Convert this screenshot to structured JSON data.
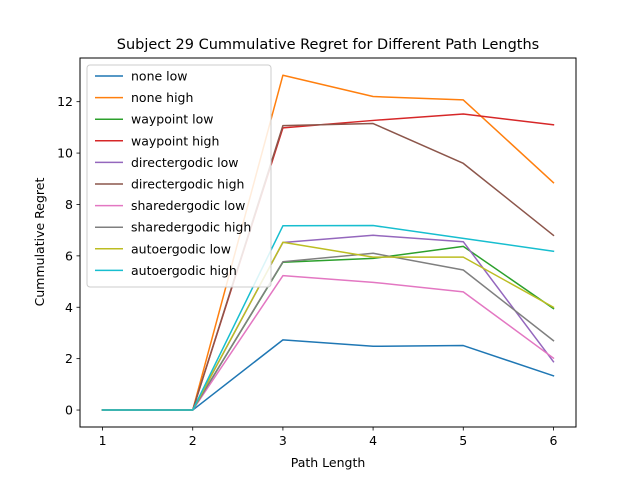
{
  "chart_data": {
    "type": "line",
    "title": "Subject 29 Cummulative Regret for Different Path Lengths",
    "xlabel": "Path Length",
    "ylabel": "Cummulative Regret",
    "x": [
      1,
      2,
      3,
      4,
      5,
      6
    ],
    "xticks": [
      1,
      2,
      3,
      4,
      5,
      6
    ],
    "yticks": [
      0,
      2,
      4,
      6,
      8,
      10,
      12
    ],
    "xlim": [
      0.75,
      6.25
    ],
    "ylim": [
      -0.66,
      13.7
    ],
    "grid": false,
    "legend_position": "top-left",
    "series": [
      {
        "name": "none low",
        "color": "#1f77b4",
        "values": [
          0,
          0,
          2.73,
          2.48,
          2.51,
          1.33
        ]
      },
      {
        "name": "none high",
        "color": "#ff7f0e",
        "values": [
          0,
          0,
          13.03,
          12.2,
          12.07,
          8.85
        ]
      },
      {
        "name": "waypoint low",
        "color": "#2ca02c",
        "values": [
          0,
          0,
          5.75,
          5.9,
          6.37,
          3.95
        ]
      },
      {
        "name": "waypoint high",
        "color": "#d62728",
        "values": [
          0,
          0,
          10.98,
          11.27,
          11.52,
          11.1
        ]
      },
      {
        "name": "directergodic low",
        "color": "#9467bd",
        "values": [
          0,
          0,
          6.52,
          6.8,
          6.55,
          1.88
        ]
      },
      {
        "name": "directergodic high",
        "color": "#8c564b",
        "values": [
          0,
          0,
          11.07,
          11.15,
          9.6,
          6.8
        ]
      },
      {
        "name": "sharedergodic low",
        "color": "#e377c2",
        "values": [
          0,
          0,
          5.23,
          4.97,
          4.6,
          2.02
        ]
      },
      {
        "name": "sharedergodic high",
        "color": "#7f7f7f",
        "values": [
          0,
          0,
          5.77,
          6.1,
          5.45,
          2.7
        ]
      },
      {
        "name": "autoergodic low",
        "color": "#bcbd22",
        "values": [
          0,
          0,
          6.53,
          5.95,
          5.95,
          4.0
        ]
      },
      {
        "name": "autoergodic high",
        "color": "#17becf",
        "values": [
          0,
          0,
          7.17,
          7.18,
          6.68,
          6.18
        ]
      }
    ]
  }
}
